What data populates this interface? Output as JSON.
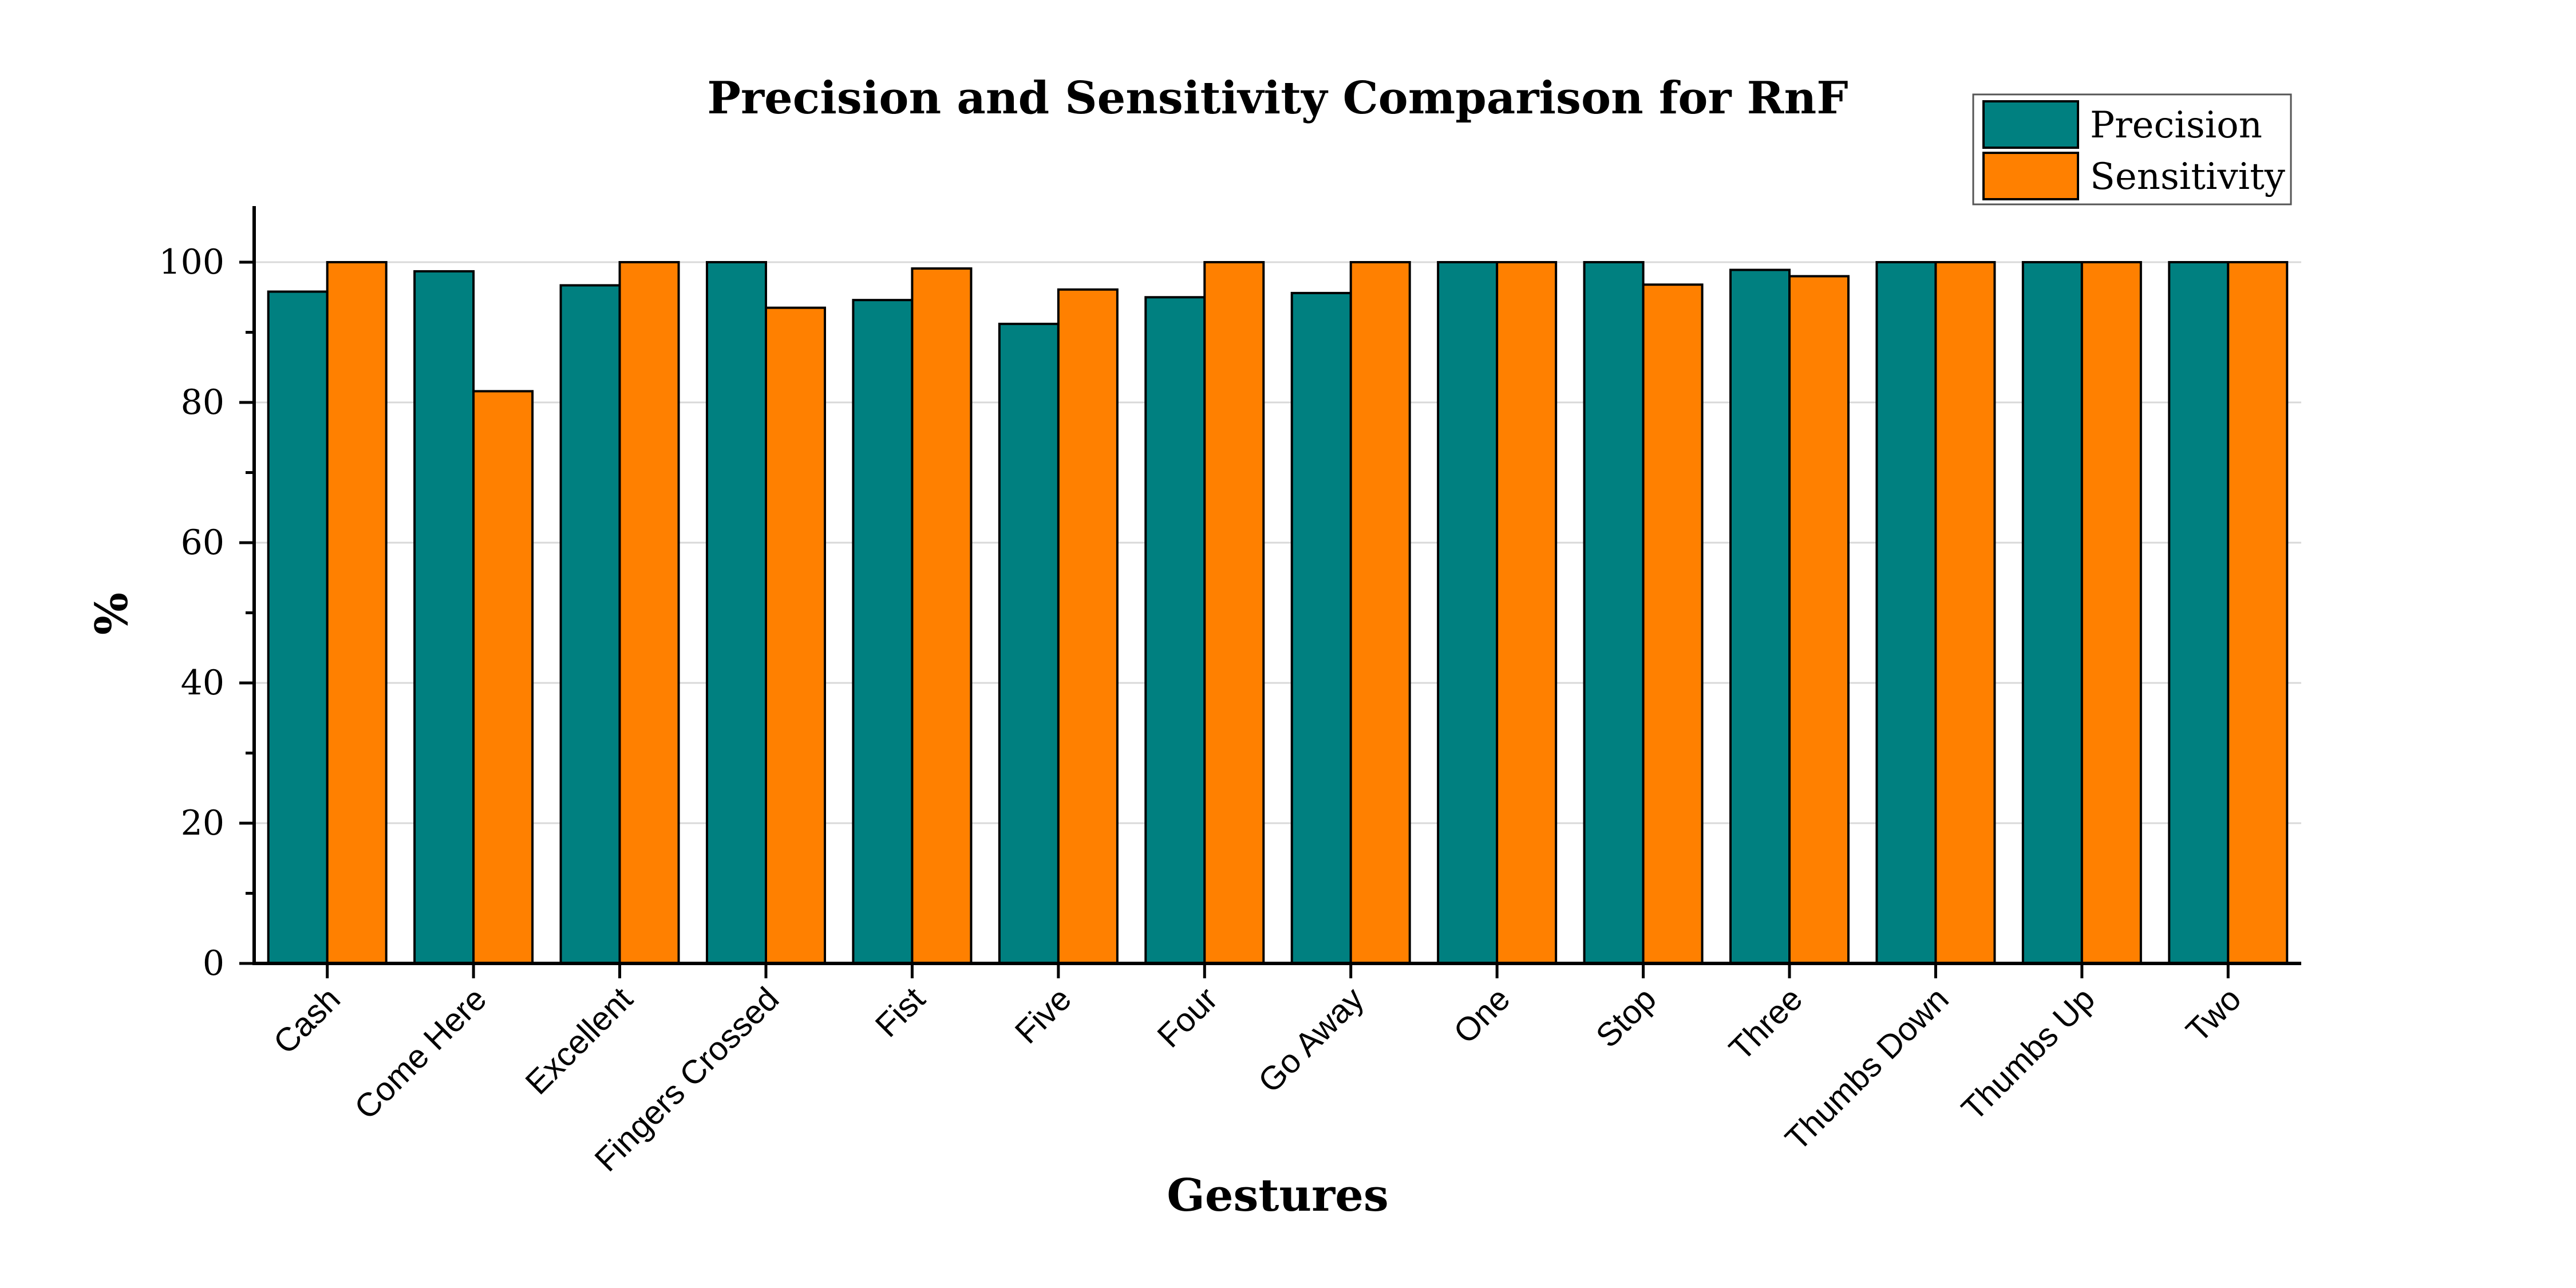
{
  "chart_data": {
    "type": "bar",
    "title": "Precision and Sensitivity Comparison for RnF",
    "xlabel": "Gestures",
    "ylabel": "%",
    "ylim": [
      0,
      108
    ],
    "yticks": [
      0,
      20,
      40,
      60,
      80,
      100
    ],
    "grid": true,
    "legend_position": "top-right",
    "categories": [
      "Cash",
      "Come Here",
      "Excellent",
      "Fingers Crossed",
      "Fist",
      "Five",
      "Four",
      "Go Away",
      "One",
      "Stop",
      "Three",
      "Thumbs Down",
      "Thumbs Up",
      "Two"
    ],
    "series": [
      {
        "name": "Precision",
        "color": "#008080",
        "values": [
          95.8,
          98.7,
          96.7,
          100,
          94.6,
          91.2,
          95.0,
          95.6,
          100,
          100,
          98.9,
          100,
          100,
          100
        ]
      },
      {
        "name": "Sensitivity",
        "color": "#ff8000",
        "values": [
          100,
          81.6,
          100,
          93.5,
          99.1,
          96.1,
          100,
          100,
          100,
          96.8,
          98.0,
          100,
          100,
          100
        ]
      }
    ]
  }
}
